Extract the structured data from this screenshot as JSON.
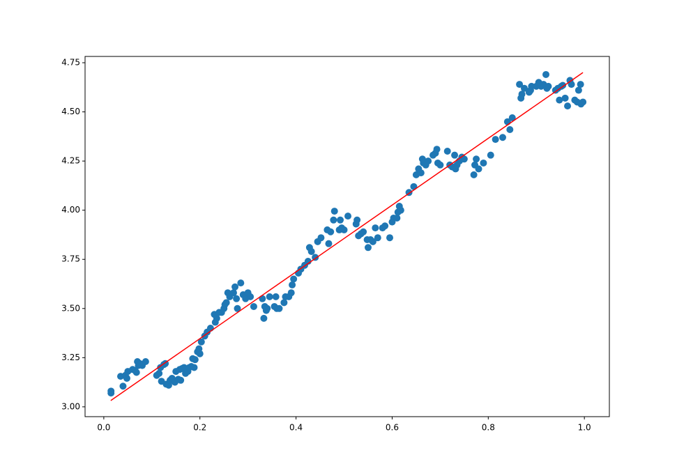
{
  "chart_data": {
    "type": "scatter",
    "xlim": [
      -0.039,
      1.052
    ],
    "ylim": [
      2.95,
      4.782
    ],
    "xticks": [
      {
        "value": 0,
        "label": "0.0"
      },
      0.2,
      0.4,
      0.6,
      0.8,
      {
        "value": 1,
        "label": "1.0"
      }
    ],
    "yticks": [
      {
        "value": 3,
        "label": "3.00"
      },
      3.25,
      {
        "value": 3.5,
        "label": "3.50"
      },
      3.75,
      {
        "value": 4,
        "label": "4.00"
      },
      4.25,
      {
        "value": 4.5,
        "label": "4.50"
      },
      4.75
    ],
    "series": [
      {
        "type": "scatter",
        "color": "#1f77b4",
        "x": [
          0.015,
          0.015,
          0.035,
          0.04,
          0.045,
          0.048,
          0.05,
          0.06,
          0.065,
          0.068,
          0.07,
          0.072,
          0.075,
          0.08,
          0.087,
          0.11,
          0.115,
          0.118,
          0.12,
          0.125,
          0.128,
          0.13,
          0.135,
          0.138,
          0.142,
          0.148,
          0.15,
          0.155,
          0.158,
          0.16,
          0.163,
          0.167,
          0.17,
          0.175,
          0.178,
          0.182,
          0.185,
          0.188,
          0.19,
          0.195,
          0.198,
          0.2,
          0.203,
          0.21,
          0.215,
          0.222,
          0.23,
          0.232,
          0.235,
          0.24,
          0.245,
          0.25,
          0.252,
          0.255,
          0.258,
          0.262,
          0.27,
          0.273,
          0.276,
          0.278,
          0.285,
          0.29,
          0.295,
          0.3,
          0.305,
          0.312,
          0.33,
          0.333,
          0.335,
          0.338,
          0.34,
          0.345,
          0.355,
          0.358,
          0.36,
          0.365,
          0.375,
          0.378,
          0.385,
          0.39,
          0.392,
          0.395,
          0.405,
          0.41,
          0.418,
          0.425,
          0.428,
          0.432,
          0.44,
          0.445,
          0.452,
          0.465,
          0.468,
          0.472,
          0.478,
          0.48,
          0.49,
          0.492,
          0.495,
          0.5,
          0.508,
          0.525,
          0.527,
          0.53,
          0.535,
          0.54,
          0.548,
          0.55,
          0.555,
          0.56,
          0.565,
          0.57,
          0.58,
          0.585,
          0.595,
          0.6,
          0.603,
          0.61,
          0.612,
          0.615,
          0.618,
          0.635,
          0.645,
          0.65,
          0.655,
          0.66,
          0.663,
          0.665,
          0.67,
          0.675,
          0.685,
          0.69,
          0.693,
          0.695,
          0.7,
          0.715,
          0.72,
          0.725,
          0.73,
          0.732,
          0.735,
          0.74,
          0.745,
          0.75,
          0.77,
          0.772,
          0.775,
          0.78,
          0.79,
          0.805,
          0.815,
          0.83,
          0.84,
          0.845,
          0.85,
          0.865,
          0.868,
          0.87,
          0.875,
          0.885,
          0.888,
          0.89,
          0.9,
          0.905,
          0.91,
          0.915,
          0.92,
          0.922,
          0.925,
          0.94,
          0.945,
          0.948,
          0.952,
          0.955,
          0.96,
          0.965,
          0.97,
          0.973,
          0.98,
          0.985,
          0.988,
          0.992,
          0.993,
          0.997
        ],
        "values": [
          3.08,
          3.07,
          3.155,
          3.105,
          3.16,
          3.145,
          3.18,
          3.19,
          3.185,
          3.175,
          3.23,
          3.21,
          3.22,
          3.21,
          3.23,
          3.16,
          3.17,
          3.2,
          3.13,
          3.215,
          3.22,
          3.115,
          3.11,
          3.135,
          3.145,
          3.125,
          3.18,
          3.14,
          3.19,
          3.135,
          3.195,
          3.2,
          3.17,
          3.18,
          3.2,
          3.205,
          3.245,
          3.2,
          3.24,
          3.28,
          3.295,
          3.27,
          3.33,
          3.36,
          3.38,
          3.4,
          3.47,
          3.43,
          3.45,
          3.48,
          3.48,
          3.5,
          3.52,
          3.53,
          3.58,
          3.56,
          3.58,
          3.61,
          3.55,
          3.5,
          3.63,
          3.57,
          3.55,
          3.58,
          3.56,
          3.51,
          3.55,
          3.45,
          3.51,
          3.49,
          3.5,
          3.56,
          3.51,
          3.56,
          3.5,
          3.5,
          3.53,
          3.56,
          3.56,
          3.58,
          3.62,
          3.65,
          3.68,
          3.7,
          3.72,
          3.74,
          3.81,
          3.79,
          3.76,
          3.84,
          3.86,
          3.9,
          3.83,
          3.89,
          3.95,
          3.995,
          3.9,
          3.95,
          3.91,
          3.9,
          3.97,
          3.93,
          3.95,
          3.87,
          3.88,
          3.89,
          3.85,
          3.81,
          3.85,
          3.84,
          3.91,
          3.86,
          3.91,
          3.92,
          3.86,
          3.94,
          3.96,
          3.96,
          3.99,
          4.02,
          4.0,
          4.09,
          4.12,
          4.18,
          4.21,
          4.19,
          4.26,
          4.24,
          4.23,
          4.25,
          4.28,
          4.29,
          4.31,
          4.24,
          4.23,
          4.3,
          4.23,
          4.22,
          4.28,
          4.21,
          4.23,
          4.25,
          4.27,
          4.26,
          4.18,
          4.23,
          4.26,
          4.21,
          4.24,
          4.28,
          4.36,
          4.37,
          4.45,
          4.41,
          4.47,
          4.64,
          4.57,
          4.59,
          4.62,
          4.6,
          4.61,
          4.63,
          4.63,
          4.65,
          4.63,
          4.64,
          4.69,
          4.62,
          4.63,
          4.61,
          4.62,
          4.56,
          4.63,
          4.635,
          4.57,
          4.53,
          4.66,
          4.64,
          4.56,
          4.55,
          4.61,
          4.64,
          4.54,
          4.55
        ]
      },
      {
        "type": "line",
        "color": "#ff0000",
        "x": [
          0.0145,
          0.997
        ],
        "values": [
          3.032,
          4.7
        ]
      }
    ]
  }
}
